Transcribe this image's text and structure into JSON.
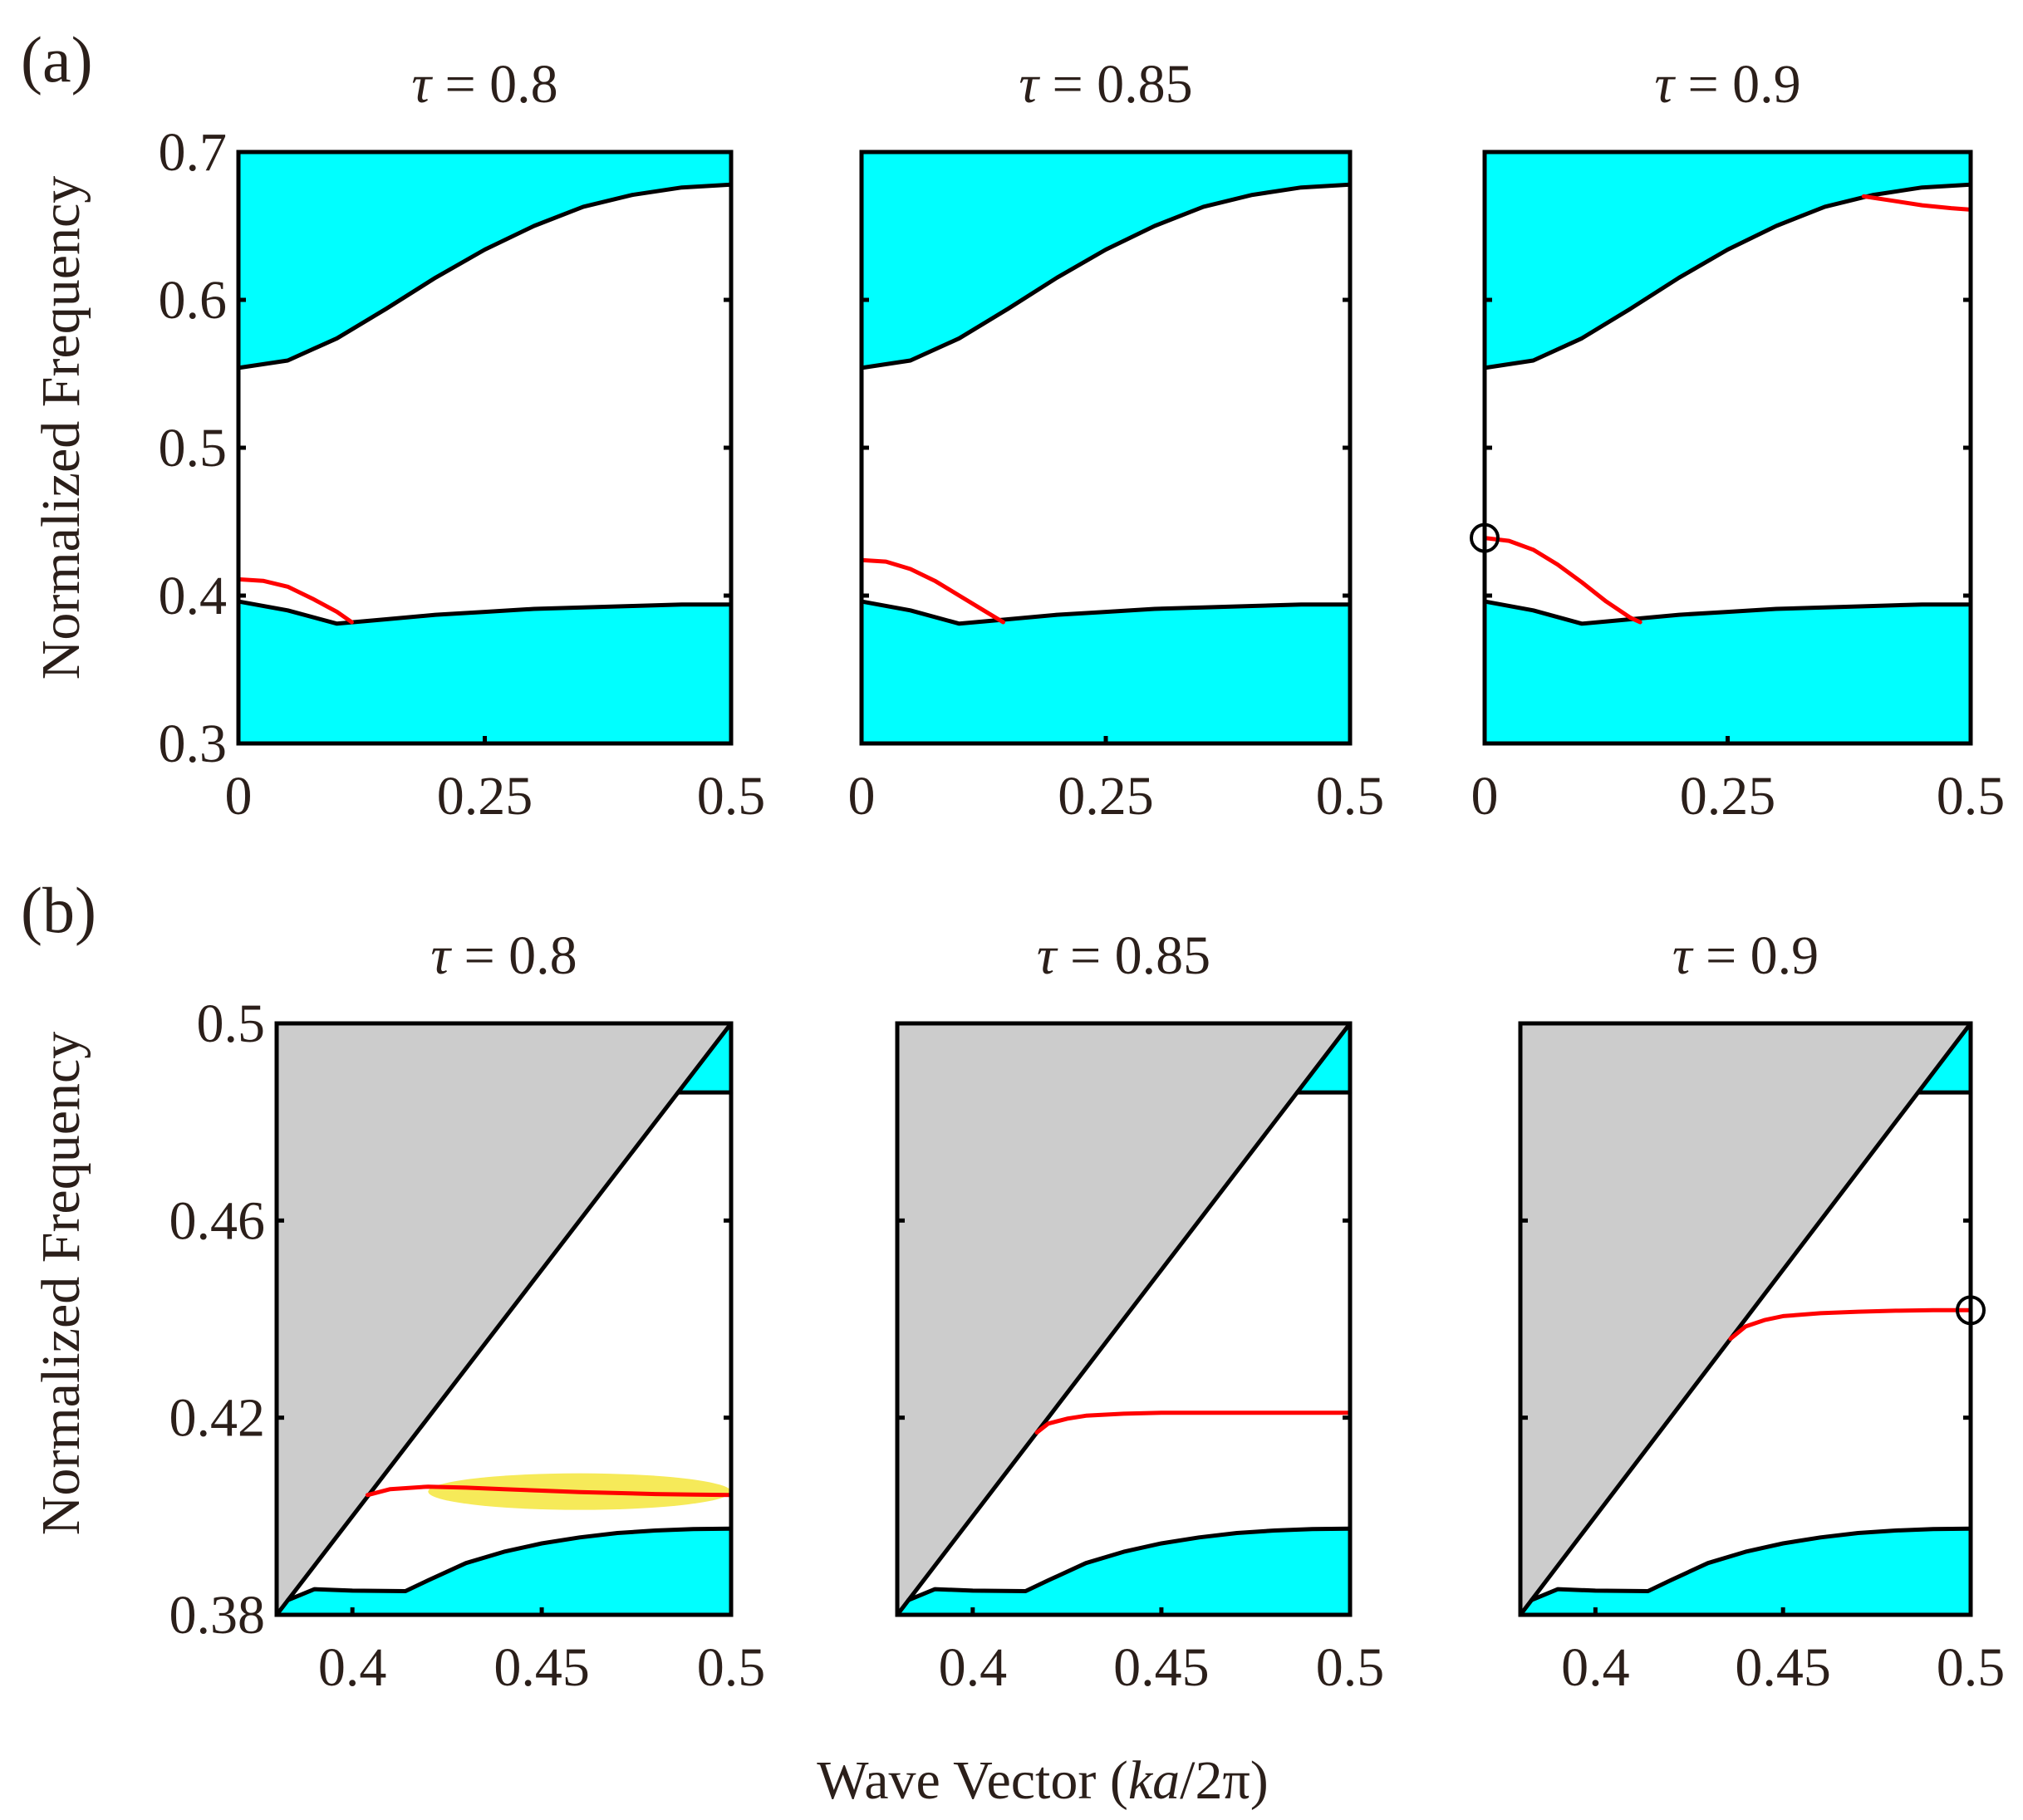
{
  "figure": {
    "row_a_label": "(a)",
    "row_b_label": "(b)",
    "ylabel": "Normalized Frequency",
    "xlabel_prefix": "Wave Vector (",
    "xlabel_italic": "ka",
    "xlabel_suffix": "/2π)"
  },
  "colors": {
    "band": "#00ffff",
    "light_cone": "#cccccc",
    "guided_mode": "#ff0000",
    "highlight": "#f5e63c",
    "axis": "#000000"
  },
  "chart_data": [
    {
      "id": "a-0.8",
      "type": "area",
      "title_symbol": "τ",
      "title_value": "= 0.8",
      "xlim": [
        0,
        0.5
      ],
      "ylim": [
        0.3,
        0.7
      ],
      "xticks": [
        0,
        0.25,
        0.5
      ],
      "xticklabels": [
        "0",
        "0.25",
        "0.5"
      ],
      "yticks": [
        0.3,
        0.4,
        0.5,
        0.6,
        0.7
      ],
      "yticklabels": [
        "0.3",
        "0.4",
        "0.5",
        "0.6",
        "0.7"
      ],
      "show_yticklabels": true,
      "upper_band_edge": {
        "x": [
          0,
          0.05,
          0.1,
          0.15,
          0.2,
          0.25,
          0.3,
          0.35,
          0.4,
          0.45,
          0.5
        ],
        "y": [
          0.554,
          0.559,
          0.574,
          0.594,
          0.615,
          0.634,
          0.65,
          0.663,
          0.671,
          0.676,
          0.678
        ]
      },
      "lower_band_edge": {
        "x": [
          0,
          0.05,
          0.1,
          0.15,
          0.2,
          0.25,
          0.3,
          0.35,
          0.4,
          0.45,
          0.5
        ],
        "y": [
          0.396,
          0.39,
          0.381,
          0.384,
          0.387,
          0.389,
          0.391,
          0.392,
          0.393,
          0.394,
          0.394
        ]
      },
      "guided_mode": {
        "x": [
          0,
          0.025,
          0.05,
          0.075,
          0.1,
          0.115
        ],
        "y": [
          0.411,
          0.41,
          0.406,
          0.398,
          0.389,
          0.382
        ]
      },
      "marker": null
    },
    {
      "id": "a-0.85",
      "type": "area",
      "title_symbol": "τ",
      "title_value": "= 0.85",
      "xlim": [
        0,
        0.5
      ],
      "ylim": [
        0.3,
        0.7
      ],
      "xticks": [
        0,
        0.25,
        0.5
      ],
      "xticklabels": [
        "0",
        "0.25",
        "0.5"
      ],
      "yticks": [
        0.3,
        0.4,
        0.5,
        0.6,
        0.7
      ],
      "yticklabels": [
        "0.3",
        "0.4",
        "0.5",
        "0.6",
        "0.7"
      ],
      "show_yticklabels": false,
      "upper_band_edge": {
        "x": [
          0,
          0.05,
          0.1,
          0.15,
          0.2,
          0.25,
          0.3,
          0.35,
          0.4,
          0.45,
          0.5
        ],
        "y": [
          0.554,
          0.559,
          0.574,
          0.594,
          0.615,
          0.634,
          0.65,
          0.663,
          0.671,
          0.676,
          0.678
        ]
      },
      "lower_band_edge": {
        "x": [
          0,
          0.05,
          0.1,
          0.15,
          0.2,
          0.25,
          0.3,
          0.35,
          0.4,
          0.45,
          0.5
        ],
        "y": [
          0.396,
          0.39,
          0.381,
          0.384,
          0.387,
          0.389,
          0.391,
          0.392,
          0.393,
          0.394,
          0.394
        ]
      },
      "guided_mode": {
        "x": [
          0,
          0.025,
          0.05,
          0.075,
          0.1,
          0.125,
          0.145
        ],
        "y": [
          0.424,
          0.423,
          0.418,
          0.41,
          0.4,
          0.39,
          0.382
        ]
      },
      "marker": null
    },
    {
      "id": "a-0.9",
      "type": "area",
      "title_symbol": "τ",
      "title_value": "= 0.9",
      "xlim": [
        0,
        0.5
      ],
      "ylim": [
        0.3,
        0.7
      ],
      "xticks": [
        0,
        0.25,
        0.5
      ],
      "xticklabels": [
        "0",
        "0.25",
        "0.5"
      ],
      "yticks": [
        0.3,
        0.4,
        0.5,
        0.6,
        0.7
      ],
      "yticklabels": [
        "0.3",
        "0.4",
        "0.5",
        "0.6",
        "0.7"
      ],
      "show_yticklabels": false,
      "upper_band_edge": {
        "x": [
          0,
          0.05,
          0.1,
          0.15,
          0.2,
          0.25,
          0.3,
          0.35,
          0.4,
          0.45,
          0.5
        ],
        "y": [
          0.554,
          0.559,
          0.574,
          0.594,
          0.615,
          0.634,
          0.65,
          0.663,
          0.671,
          0.676,
          0.678
        ]
      },
      "lower_band_edge": {
        "x": [
          0,
          0.05,
          0.1,
          0.15,
          0.2,
          0.25,
          0.3,
          0.35,
          0.4,
          0.45,
          0.5
        ],
        "y": [
          0.396,
          0.39,
          0.381,
          0.384,
          0.387,
          0.389,
          0.391,
          0.392,
          0.393,
          0.394,
          0.394
        ]
      },
      "guided_mode": {
        "x": [
          0,
          0.025,
          0.05,
          0.075,
          0.1,
          0.125,
          0.15,
          0.16
        ],
        "y": [
          0.439,
          0.437,
          0.431,
          0.421,
          0.409,
          0.396,
          0.385,
          0.382
        ]
      },
      "guided_mode_2": {
        "x": [
          0.39,
          0.42,
          0.45,
          0.48,
          0.5
        ],
        "y": [
          0.67,
          0.667,
          0.664,
          0.662,
          0.661
        ]
      },
      "marker": {
        "x": 0,
        "y": 0.439
      }
    },
    {
      "id": "b-0.8",
      "type": "area",
      "title_symbol": "τ",
      "title_value": "= 0.8",
      "xlim": [
        0.38,
        0.5
      ],
      "ylim": [
        0.38,
        0.5
      ],
      "xticks": [
        0.4,
        0.45,
        0.5
      ],
      "xticklabels": [
        "0.4",
        "0.45",
        "0.5"
      ],
      "yticks": [
        0.38,
        0.42,
        0.46,
        0.5
      ],
      "yticklabels": [
        "0.38",
        "0.42",
        "0.46",
        "0.5"
      ],
      "show_yticklabels": true,
      "light_line": {
        "x": [
          0.38,
          0.5
        ],
        "y": [
          0.38,
          0.5
        ]
      },
      "upper_band_edge": {
        "x": [
          0.486,
          0.5
        ],
        "y": [
          0.486,
          0.486
        ]
      },
      "lower_band_edge": {
        "x": [
          0.383,
          0.39,
          0.4,
          0.414,
          0.42,
          0.43,
          0.44,
          0.45,
          0.46,
          0.47,
          0.48,
          0.49,
          0.5
        ],
        "y": [
          0.383,
          0.3852,
          0.3849,
          0.3848,
          0.387,
          0.3905,
          0.3928,
          0.3945,
          0.3957,
          0.3966,
          0.3971,
          0.3974,
          0.3975
        ]
      },
      "guided_mode": {
        "x": [
          0.404,
          0.41,
          0.42,
          0.43,
          0.44,
          0.45,
          0.46,
          0.47,
          0.48,
          0.49,
          0.5
        ],
        "y": [
          0.4043,
          0.4055,
          0.406,
          0.4058,
          0.4055,
          0.4052,
          0.4049,
          0.4047,
          0.4045,
          0.4044,
          0.4043
        ]
      },
      "highlight": {
        "x_range": [
          0.42,
          0.5
        ],
        "y": 0.405
      },
      "marker": null
    },
    {
      "id": "b-0.85",
      "type": "area",
      "title_symbol": "τ",
      "title_value": "= 0.85",
      "xlim": [
        0.38,
        0.5
      ],
      "ylim": [
        0.38,
        0.5
      ],
      "xticks": [
        0.4,
        0.45,
        0.5
      ],
      "xticklabels": [
        "0.4",
        "0.45",
        "0.5"
      ],
      "yticks": [
        0.38,
        0.42,
        0.46,
        0.5
      ],
      "yticklabels": [
        "0.38",
        "0.42",
        "0.46",
        "0.5"
      ],
      "show_yticklabels": false,
      "light_line": {
        "x": [
          0.38,
          0.5
        ],
        "y": [
          0.38,
          0.5
        ]
      },
      "upper_band_edge": {
        "x": [
          0.486,
          0.5
        ],
        "y": [
          0.486,
          0.486
        ]
      },
      "lower_band_edge": {
        "x": [
          0.383,
          0.39,
          0.4,
          0.414,
          0.42,
          0.43,
          0.44,
          0.45,
          0.46,
          0.47,
          0.48,
          0.49,
          0.5
        ],
        "y": [
          0.383,
          0.3852,
          0.3849,
          0.3848,
          0.387,
          0.3905,
          0.3928,
          0.3945,
          0.3957,
          0.3966,
          0.3971,
          0.3974,
          0.3975
        ]
      },
      "guided_mode": {
        "x": [
          0.417,
          0.42,
          0.425,
          0.43,
          0.44,
          0.45,
          0.46,
          0.47,
          0.48,
          0.49,
          0.5
        ],
        "y": [
          0.417,
          0.4188,
          0.4198,
          0.4204,
          0.4208,
          0.421,
          0.421,
          0.421,
          0.421,
          0.421,
          0.421
        ]
      },
      "marker": null
    },
    {
      "id": "b-0.9",
      "type": "area",
      "title_symbol": "τ",
      "title_value": "= 0.9",
      "xlim": [
        0.38,
        0.5
      ],
      "ylim": [
        0.38,
        0.5
      ],
      "xticks": [
        0.4,
        0.45,
        0.5
      ],
      "xticklabels": [
        "0.4",
        "0.45",
        "0.5"
      ],
      "yticks": [
        0.38,
        0.42,
        0.46,
        0.5
      ],
      "yticklabels": [
        "0.38",
        "0.42",
        "0.46",
        "0.5"
      ],
      "show_yticklabels": false,
      "light_line": {
        "x": [
          0.38,
          0.5
        ],
        "y": [
          0.38,
          0.5
        ]
      },
      "upper_band_edge": {
        "x": [
          0.486,
          0.5
        ],
        "y": [
          0.486,
          0.486
        ]
      },
      "lower_band_edge": {
        "x": [
          0.383,
          0.39,
          0.4,
          0.414,
          0.42,
          0.43,
          0.44,
          0.45,
          0.46,
          0.47,
          0.48,
          0.49,
          0.5
        ],
        "y": [
          0.383,
          0.3852,
          0.3849,
          0.3848,
          0.387,
          0.3905,
          0.3928,
          0.3945,
          0.3957,
          0.3966,
          0.3971,
          0.3974,
          0.3975
        ]
      },
      "guided_mode": {
        "x": [
          0.436,
          0.44,
          0.445,
          0.45,
          0.46,
          0.47,
          0.48,
          0.49,
          0.5
        ],
        "y": [
          0.436,
          0.4385,
          0.4398,
          0.4406,
          0.4412,
          0.4415,
          0.4417,
          0.4418,
          0.4418
        ]
      },
      "marker": {
        "x": 0.5,
        "y": 0.4418
      }
    }
  ]
}
